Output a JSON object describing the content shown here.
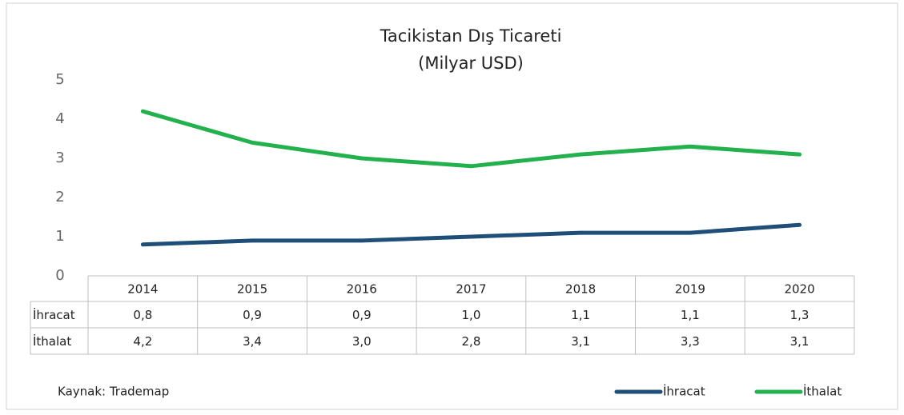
{
  "chart_data": {
    "type": "line",
    "title": "Tacikistan Dış Ticareti",
    "subtitle": "(Milyar USD)",
    "source": "Kaynak: Trademap",
    "categories": [
      "2014",
      "2015",
      "2016",
      "2017",
      "2018",
      "2019",
      "2020"
    ],
    "series": [
      {
        "name": "İhracat",
        "color": "#1f4e79",
        "values": [
          0.8,
          0.9,
          0.9,
          1.0,
          1.1,
          1.1,
          1.3
        ],
        "value_labels": [
          "0,8",
          "0,9",
          "0,9",
          "1,0",
          "1,1",
          "1,1",
          "1,3"
        ]
      },
      {
        "name": "İthalat",
        "color": "#22b14c",
        "values": [
          4.2,
          3.4,
          3.0,
          2.8,
          3.1,
          3.3,
          3.1
        ],
        "value_labels": [
          "4,2",
          "3,4",
          "3,0",
          "2,8",
          "3,1",
          "3,3",
          "3,1"
        ]
      }
    ],
    "ylim": [
      0,
      5
    ],
    "yticks": [
      0,
      1,
      2,
      3,
      4,
      5
    ],
    "grid": false,
    "legend": "bottom-right"
  }
}
